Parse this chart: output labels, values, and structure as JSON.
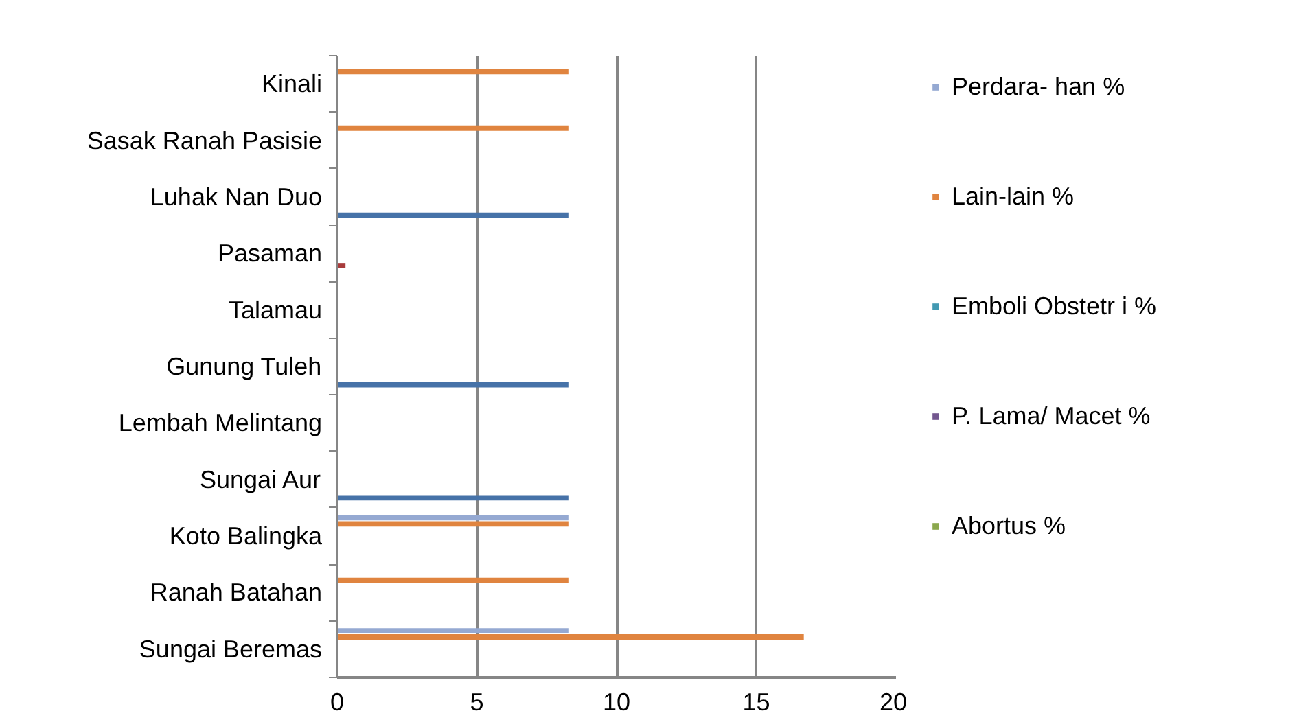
{
  "chart_data": {
    "type": "bar",
    "orientation": "horizontal",
    "categories": [
      "Kinali",
      "Sasak Ranah Pasisie",
      "Luhak Nan Duo",
      "Pasaman",
      "Talamau",
      "Gunung Tuleh",
      "Lembah Melintang",
      "Sungai Aur",
      "Koto Balingka",
      "Ranah Batahan",
      "Sungai Beremas"
    ],
    "series": [
      {
        "name": "Perdara- han %",
        "color": "#95a9d2",
        "values": [
          0,
          0,
          0,
          0,
          0,
          0,
          0,
          0,
          8.3,
          0,
          8.3
        ]
      },
      {
        "name": "Lain-lain %",
        "color": "#e0843f",
        "values": [
          8.3,
          8.3,
          0,
          0,
          0,
          0,
          0,
          0,
          8.3,
          8.3,
          16.7
        ]
      },
      {
        "name": "Emboli Obstetr i %",
        "color": "#4299b2",
        "values": [
          0,
          0,
          0,
          0,
          0,
          0,
          0,
          0,
          0,
          0,
          0
        ]
      },
      {
        "name": "P. Lama/ Macet %",
        "color": "#73578f",
        "values": [
          0,
          0,
          0,
          0,
          0,
          0,
          0,
          0,
          0,
          0,
          0
        ]
      },
      {
        "name": "Abortus %",
        "color": "#8ba84d",
        "values": [
          0,
          0,
          0,
          0,
          0,
          0,
          0,
          0,
          0,
          0,
          0
        ]
      },
      {
        "color": "#a83b3b",
        "values": [
          0,
          0,
          0,
          0.3,
          0,
          0,
          0,
          0,
          0,
          0,
          0
        ]
      },
      {
        "color": "#4672a8",
        "values": [
          0,
          0,
          8.3,
          0,
          0,
          8.3,
          0,
          8.3,
          0,
          0,
          0
        ]
      }
    ],
    "xlim": [
      0,
      20
    ],
    "xticks": [
      0,
      5,
      10,
      15,
      20
    ],
    "grid": "x",
    "legend": "right"
  }
}
